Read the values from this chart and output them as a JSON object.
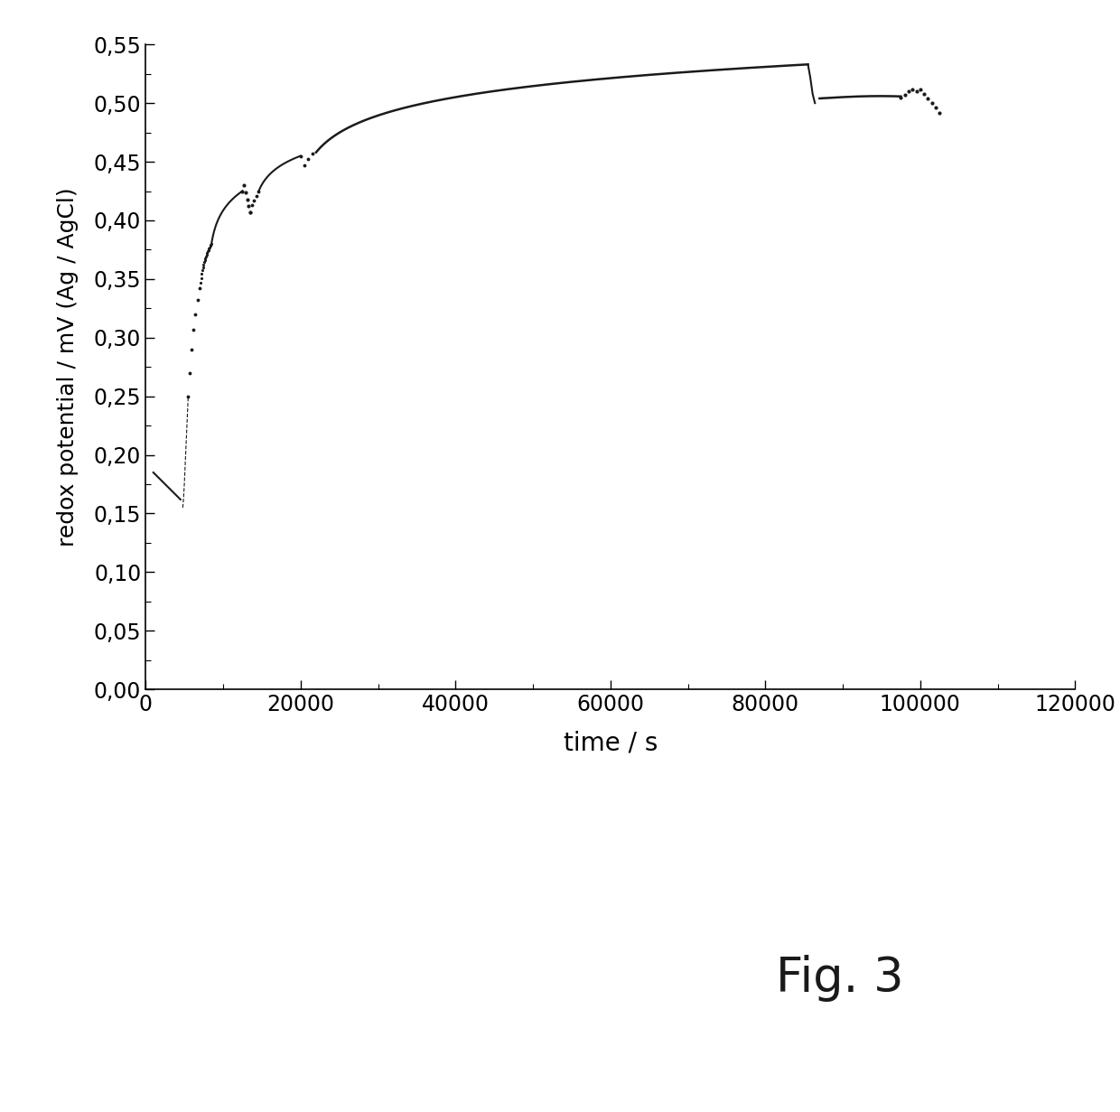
{
  "title": "",
  "xlabel": "time / s",
  "ylabel": "redox potential / mV (Ag / AgCl)",
  "xlim": [
    0,
    120000
  ],
  "ylim": [
    0.0,
    0.55
  ],
  "xticks": [
    0,
    20000,
    40000,
    60000,
    80000,
    100000,
    120000
  ],
  "yticks": [
    0.0,
    0.05,
    0.1,
    0.15,
    0.2,
    0.25,
    0.3,
    0.35,
    0.4,
    0.45,
    0.5,
    0.55
  ],
  "fig3_label": "Fig. 3",
  "background_color": "#ffffff",
  "line_color": "#1a1a1a"
}
